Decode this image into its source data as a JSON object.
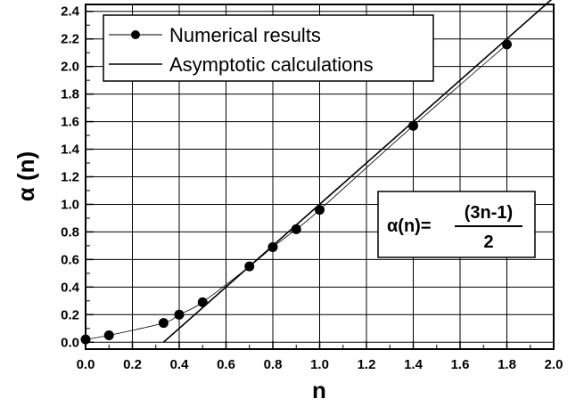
{
  "chart_data": {
    "type": "scatter",
    "xlabel": "n",
    "ylabel": "α (n)",
    "xlim": [
      0.0,
      2.0
    ],
    "ylim": [
      -0.05,
      2.45
    ],
    "x_ticks": [
      "0.0",
      "0.2",
      "0.4",
      "0.6",
      "0.8",
      "1.0",
      "1.2",
      "1.4",
      "1.6",
      "1.8",
      "2.0"
    ],
    "y_ticks": [
      "0.0",
      "0.2",
      "0.4",
      "0.6",
      "0.8",
      "1.0",
      "1.2",
      "1.4",
      "1.6",
      "1.8",
      "2.0",
      "2.2",
      "2.4"
    ],
    "grid": true,
    "legend_position": "top-left",
    "series": [
      {
        "name": "Numerical results",
        "kind": "points-with-fit-curve",
        "x": [
          0.0,
          0.1,
          0.333,
          0.4,
          0.5,
          0.7,
          0.8,
          0.9,
          1.0,
          1.4,
          1.8
        ],
        "y": [
          0.02,
          0.05,
          0.14,
          0.2,
          0.29,
          0.55,
          0.69,
          0.82,
          0.96,
          1.57,
          2.16
        ]
      },
      {
        "name": "Asymptotic calculations",
        "kind": "line",
        "x": [
          0.333,
          2.0
        ],
        "y": [
          0.0,
          2.5
        ]
      }
    ],
    "annotation": {
      "lhs": "α(n)=",
      "numerator": "(3n-1)",
      "denominator": "2"
    }
  }
}
